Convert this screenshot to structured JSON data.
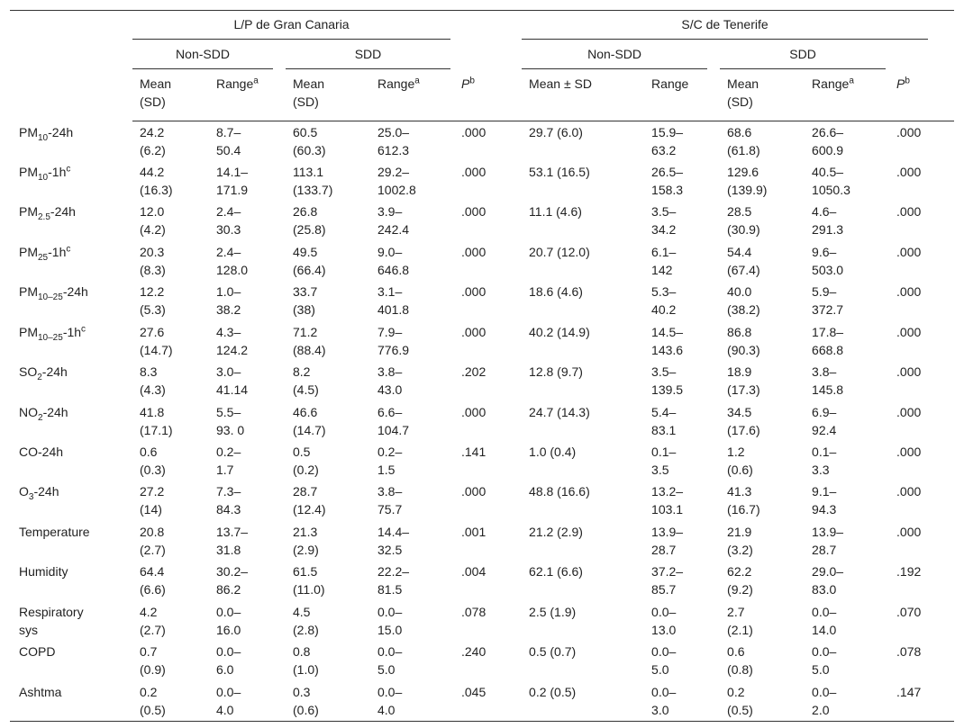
{
  "table": {
    "groups": [
      "L/P de Gran Canaria",
      "S/C de Tenerife"
    ],
    "subgroups": [
      "Non-SDD",
      "SDD",
      "Non-SDD",
      "SDD"
    ],
    "columns": [
      [
        "Mean",
        "(SD)"
      ],
      [
        [
          "Range",
          {
            "sup": "a"
          }
        ]
      ],
      [
        "Mean",
        "(SD)"
      ],
      [
        [
          "Range",
          {
            "sup": "a"
          }
        ]
      ],
      [
        [
          {
            "i": "P"
          },
          {
            "sup": "b"
          }
        ]
      ],
      [
        "Mean ± SD"
      ],
      [
        "Range"
      ],
      [
        "Mean",
        "(SD)"
      ],
      [
        [
          "Range",
          {
            "sup": "a"
          }
        ]
      ],
      [
        [
          {
            "i": "P"
          },
          {
            "sup": "b"
          }
        ]
      ]
    ],
    "rows": [
      {
        "label": [
          [
            "PM",
            {
              "sub": "10"
            },
            "-24h"
          ]
        ],
        "cells": [
          [
            "24.2",
            "(6.2)"
          ],
          [
            "8.7–",
            "50.4"
          ],
          [
            "60.5",
            "(60.3)"
          ],
          [
            "25.0–",
            "612.3"
          ],
          [
            ".000"
          ],
          [
            "29.7 (6.0)"
          ],
          [
            "15.9–",
            "63.2"
          ],
          [
            "68.6",
            "(61.8)"
          ],
          [
            "26.6–",
            "600.9"
          ],
          [
            ".000"
          ]
        ]
      },
      {
        "label": [
          [
            "PM",
            {
              "sub": "10"
            },
            "-1h",
            {
              "sup": "c"
            }
          ]
        ],
        "cells": [
          [
            "44.2",
            "(16.3)"
          ],
          [
            "14.1–",
            "171.9"
          ],
          [
            "113.1",
            "(133.7)"
          ],
          [
            "29.2–",
            "1002.8"
          ],
          [
            ".000"
          ],
          [
            "53.1 (16.5)"
          ],
          [
            "26.5–",
            "158.3"
          ],
          [
            "129.6",
            "(139.9)"
          ],
          [
            "40.5–",
            "1050.3"
          ],
          [
            ".000"
          ]
        ]
      },
      {
        "label": [
          [
            "PM",
            {
              "sub": "2.5"
            },
            "-24h"
          ]
        ],
        "cells": [
          [
            "12.0",
            "(4.2)"
          ],
          [
            "2.4–",
            "30.3"
          ],
          [
            "26.8",
            "(25.8)"
          ],
          [
            "3.9–",
            "242.4"
          ],
          [
            ".000"
          ],
          [
            "11.1 (4.6)"
          ],
          [
            "3.5–",
            "34.2"
          ],
          [
            "28.5",
            "(30.9)"
          ],
          [
            "4.6–",
            "291.3"
          ],
          [
            ".000"
          ]
        ]
      },
      {
        "label": [
          [
            "PM",
            {
              "sub": "25"
            },
            "-1h",
            {
              "sup": "c"
            }
          ]
        ],
        "cells": [
          [
            "20.3",
            "(8.3)"
          ],
          [
            "2.4–",
            "128.0"
          ],
          [
            "49.5",
            "(66.4)"
          ],
          [
            "9.0–",
            "646.8"
          ],
          [
            ".000"
          ],
          [
            "20.7 (12.0)"
          ],
          [
            "6.1–",
            "142"
          ],
          [
            "54.4",
            "(67.4)"
          ],
          [
            "9.6–",
            "503.0"
          ],
          [
            ".000"
          ]
        ]
      },
      {
        "label": [
          [
            "PM",
            {
              "sub": "10–25"
            },
            "-24h"
          ]
        ],
        "cells": [
          [
            "12.2",
            "(5.3)"
          ],
          [
            "1.0–",
            "38.2"
          ],
          [
            "33.7",
            "(38)"
          ],
          [
            "3.1–",
            "401.8"
          ],
          [
            ".000"
          ],
          [
            "18.6 (4.6)"
          ],
          [
            "5.3–",
            "40.2"
          ],
          [
            "40.0",
            "(38.2)"
          ],
          [
            "5.9–",
            "372.7"
          ],
          [
            ".000"
          ]
        ]
      },
      {
        "label": [
          [
            "PM",
            {
              "sub": "10–25"
            },
            "-1h",
            {
              "sup": "c"
            }
          ]
        ],
        "cells": [
          [
            "27.6",
            "(14.7)"
          ],
          [
            "4.3–",
            "124.2"
          ],
          [
            "71.2",
            "(88.4)"
          ],
          [
            "7.9–",
            "776.9"
          ],
          [
            ".000"
          ],
          [
            "40.2 (14.9)"
          ],
          [
            "14.5–",
            "143.6"
          ],
          [
            "86.8",
            "(90.3)"
          ],
          [
            "17.8–",
            "668.8"
          ],
          [
            ".000"
          ]
        ]
      },
      {
        "label": [
          [
            "SO",
            {
              "sub": "2"
            },
            "-24h"
          ]
        ],
        "cells": [
          [
            "8.3",
            "(4.3)"
          ],
          [
            "3.0–",
            "41.14"
          ],
          [
            "8.2",
            "(4.5)"
          ],
          [
            "3.8–",
            "43.0"
          ],
          [
            ".202"
          ],
          [
            "12.8 (9.7)"
          ],
          [
            "3.5–",
            "139.5"
          ],
          [
            "18.9",
            "(17.3)"
          ],
          [
            "3.8–",
            "145.8"
          ],
          [
            ".000"
          ]
        ]
      },
      {
        "label": [
          [
            "NO",
            {
              "sub": "2"
            },
            "-24h"
          ]
        ],
        "cells": [
          [
            "41.8",
            "(17.1)"
          ],
          [
            "5.5–",
            "93. 0"
          ],
          [
            "46.6",
            "(14.7)"
          ],
          [
            "6.6–",
            "104.7"
          ],
          [
            ".000"
          ],
          [
            "24.7 (14.3)"
          ],
          [
            "5.4–",
            "83.1"
          ],
          [
            "34.5",
            "(17.6)"
          ],
          [
            "6.9–",
            "92.4"
          ],
          [
            ".000"
          ]
        ]
      },
      {
        "label": [
          "CO-24h"
        ],
        "cells": [
          [
            "0.6",
            "(0.3)"
          ],
          [
            "0.2–",
            "1.7"
          ],
          [
            "0.5",
            "(0.2)"
          ],
          [
            "0.2–",
            "1.5"
          ],
          [
            ".141"
          ],
          [
            "1.0 (0.4)"
          ],
          [
            "0.1–",
            "3.5"
          ],
          [
            "1.2",
            "(0.6)"
          ],
          [
            "0.1–",
            "3.3"
          ],
          [
            ".000"
          ]
        ]
      },
      {
        "label": [
          [
            "O",
            {
              "sub": "3"
            },
            "-24h"
          ]
        ],
        "cells": [
          [
            "27.2",
            "(14)"
          ],
          [
            "7.3–",
            "84.3"
          ],
          [
            "28.7",
            "(12.4)"
          ],
          [
            "3.8–",
            "75.7"
          ],
          [
            ".000"
          ],
          [
            "48.8 (16.6)"
          ],
          [
            "13.2–",
            "103.1"
          ],
          [
            "41.3",
            "(16.7)"
          ],
          [
            "9.1–",
            "94.3"
          ],
          [
            ".000"
          ]
        ]
      },
      {
        "label": [
          "Temperature"
        ],
        "cells": [
          [
            "20.8",
            "(2.7)"
          ],
          [
            "13.7–",
            "31.8"
          ],
          [
            "21.3",
            "(2.9)"
          ],
          [
            "14.4–",
            "32.5"
          ],
          [
            ".001"
          ],
          [
            "21.2 (2.9)"
          ],
          [
            "13.9–",
            "28.7"
          ],
          [
            "21.9",
            "(3.2)"
          ],
          [
            "13.9–",
            "28.7"
          ],
          [
            ".000"
          ]
        ]
      },
      {
        "label": [
          "Humidity"
        ],
        "cells": [
          [
            "64.4",
            "(6.6)"
          ],
          [
            "30.2–",
            "86.2"
          ],
          [
            "61.5",
            "(11.0)"
          ],
          [
            "22.2–",
            "81.5"
          ],
          [
            ".004"
          ],
          [
            "62.1 (6.6)"
          ],
          [
            "37.2–",
            "85.7"
          ],
          [
            "62.2",
            "(9.2)"
          ],
          [
            "29.0–",
            "83.0"
          ],
          [
            ".192"
          ]
        ]
      },
      {
        "label": [
          "Respiratory",
          "sys"
        ],
        "cells": [
          [
            "4.2",
            "(2.7)"
          ],
          [
            "0.0–",
            "16.0"
          ],
          [
            "4.5",
            "(2.8)"
          ],
          [
            "0.0–",
            "15.0"
          ],
          [
            ".078"
          ],
          [
            "2.5 (1.9)"
          ],
          [
            "0.0–",
            "13.0"
          ],
          [
            "2.7",
            "(2.1)"
          ],
          [
            "0.0–",
            "14.0"
          ],
          [
            ".070"
          ]
        ]
      },
      {
        "label": [
          "COPD"
        ],
        "cells": [
          [
            "0.7",
            "(0.9)"
          ],
          [
            "0.0–",
            "6.0"
          ],
          [
            "0.8",
            "(1.0)"
          ],
          [
            "0.0–",
            "5.0"
          ],
          [
            ".240"
          ],
          [
            "0.5 (0.7)"
          ],
          [
            "0.0–",
            "5.0"
          ],
          [
            "0.6",
            "(0.8)"
          ],
          [
            "0.0–",
            "5.0"
          ],
          [
            ".078"
          ]
        ]
      },
      {
        "label": [
          "Ashtma"
        ],
        "cells": [
          [
            "0.2",
            "(0.5)"
          ],
          [
            "0.0–",
            "4.0"
          ],
          [
            "0.3",
            "(0.6)"
          ],
          [
            "0.0–",
            "4.0"
          ],
          [
            ".045"
          ],
          [
            "0.2 (0.5)"
          ],
          [
            "0.0–",
            "3.0"
          ],
          [
            "0.2",
            "(0.5)"
          ],
          [
            "0.0–",
            "2.0"
          ],
          [
            ".147"
          ]
        ]
      }
    ]
  }
}
